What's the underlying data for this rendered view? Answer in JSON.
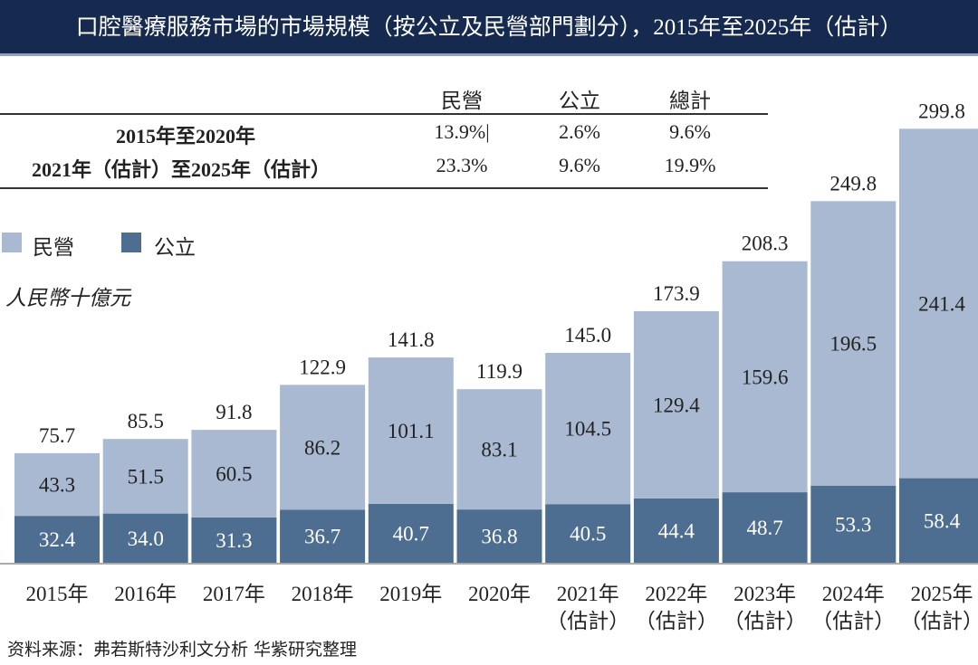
{
  "title": "口腔醫療服務市場的市場規模（按公立及民營部門劃分），2015年至2025年（估計）",
  "cagr_table": {
    "headers": [
      "民營",
      "公立",
      "總計"
    ],
    "rows": [
      {
        "label": "2015年至2020年",
        "values": [
          "13.9%|",
          "2.6%",
          "9.6%"
        ]
      },
      {
        "label": "2021年（估計）至2025年（估計）",
        "values": [
          "23.3%",
          "9.6%",
          "19.9%"
        ]
      }
    ]
  },
  "legend": [
    {
      "label": "民營",
      "color": "#a9b9d1"
    },
    {
      "label": "公立",
      "color": "#4d6e90"
    }
  ],
  "unit": "人民幣十億元",
  "source": "资料来源：弗若斯特沙利文分析 华紫研究整理",
  "chart_data": {
    "type": "bar",
    "stacked": true,
    "categories": [
      "2015年",
      "2016年",
      "2017年",
      "2018年",
      "2019年",
      "2020年",
      "2021年\n（估計）",
      "2022年\n（估計）",
      "2023年\n（估計）",
      "2024年\n（估計）",
      "2025年\n（估計）"
    ],
    "series": [
      {
        "name": "公立",
        "color": "#4d6e90",
        "values": [
          32.4,
          34.0,
          31.3,
          36.7,
          40.7,
          36.8,
          40.5,
          44.4,
          48.7,
          53.3,
          58.4
        ]
      },
      {
        "name": "民營",
        "color": "#a9b9d1",
        "values": [
          43.3,
          51.5,
          60.5,
          86.2,
          101.1,
          83.1,
          104.5,
          129.4,
          159.6,
          196.5,
          241.4
        ]
      }
    ],
    "totals": [
      75.7,
      85.5,
      91.8,
      122.9,
      141.8,
      119.9,
      145.0,
      173.9,
      208.3,
      249.8,
      299.8
    ],
    "ylabel": "人民幣十億元",
    "ylim": [
      0,
      300
    ],
    "grid": false,
    "legend_position": "top-left"
  }
}
